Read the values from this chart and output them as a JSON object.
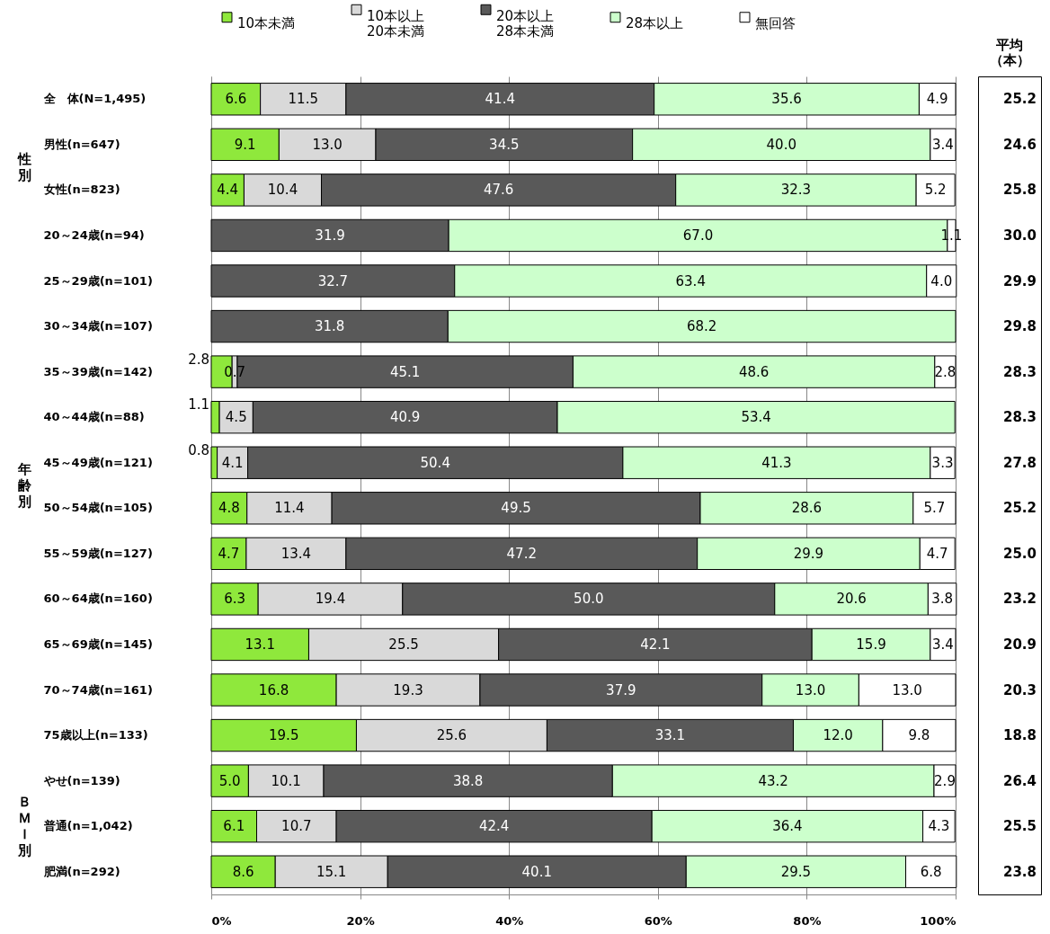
{
  "chart_data": [
    {
      "type": "bar",
      "orientation": "horizontal",
      "stacked": true,
      "legend": "top",
      "grid": "x",
      "categories": [
        "全　体(N=1,495)",
        "男性(n=647)",
        "女性(n=823)",
        "20～24歳(n=94)",
        "25～29歳(n=101)",
        "30～34歳(n=107)",
        "35～39歳(n=142)",
        "40～44歳(n=88)",
        "45～49歳(n=121)",
        "50～54歳(n=105)",
        "55～59歳(n=127)",
        "60～64歳(n=160)",
        "65～69歳(n=145)",
        "70～74歳(n=161)",
        "75歳以上(n=133)",
        "やせ(n=139)",
        "普通(n=1,042)",
        "肥満(n=292)"
      ],
      "series": [
        {
          "name": "10本未満",
          "color": "#8fe83c",
          "values": [
            6.6,
            9.1,
            4.4,
            null,
            null,
            null,
            2.8,
            1.1,
            0.8,
            4.8,
            4.7,
            6.3,
            13.1,
            16.8,
            19.5,
            5.0,
            6.1,
            8.6
          ],
          "value_labels": [
            "6.6",
            "9.1",
            "4.4",
            null,
            null,
            null,
            "2.8",
            "1.1",
            "0.8",
            "4.8",
            "4.7",
            "6.3",
            "13.1",
            "16.8",
            "19.5",
            "5.0",
            "6.1",
            "8.6"
          ]
        },
        {
          "name": "10本以上\n20本未満",
          "color": "#d9d9d9",
          "values": [
            11.5,
            13.0,
            10.4,
            null,
            null,
            null,
            0.7,
            4.5,
            4.1,
            11.4,
            13.4,
            19.4,
            25.5,
            19.3,
            25.6,
            10.1,
            10.7,
            15.1
          ],
          "value_labels": [
            "11.5",
            "13.0",
            "10.4",
            null,
            null,
            null,
            "0.7",
            "4.5",
            "4.1",
            "11.4",
            "13.4",
            "19.4",
            "25.5",
            "19.3",
            "25.6",
            "10.1",
            "10.7",
            "15.1"
          ]
        },
        {
          "name": "20本以上\n28本未満",
          "color": "#595959",
          "values": [
            41.4,
            34.5,
            47.6,
            31.9,
            32.7,
            31.8,
            45.1,
            40.9,
            50.4,
            49.5,
            47.2,
            50.0,
            42.1,
            37.9,
            33.1,
            38.8,
            42.4,
            40.1
          ],
          "value_labels": [
            "41.4",
            "34.5",
            "47.6",
            "31.9",
            "32.7",
            "31.8",
            "45.1",
            "40.9",
            "50.4",
            "49.5",
            "47.2",
            "50.0",
            "42.1",
            "37.9",
            "33.1",
            "38.8",
            "42.4",
            "40.1"
          ]
        },
        {
          "name": "28本以上",
          "color": "#ccffcc",
          "values": [
            35.6,
            40.0,
            32.3,
            67.0,
            63.4,
            68.2,
            48.6,
            53.4,
            41.3,
            28.6,
            29.9,
            20.6,
            15.9,
            13.0,
            12.0,
            43.2,
            36.4,
            29.5
          ],
          "value_labels": [
            "35.6",
            "40.0",
            "32.3",
            "67.0",
            "63.4",
            "68.2",
            "48.6",
            "53.4",
            "41.3",
            "28.6",
            "29.9",
            "20.6",
            "15.9",
            "13.0",
            "12.0",
            "43.2",
            "36.4",
            "29.5"
          ]
        },
        {
          "name": "無回答",
          "color": "#ffffff",
          "values": [
            4.9,
            3.4,
            5.2,
            1.1,
            4.0,
            null,
            2.8,
            null,
            3.3,
            5.7,
            4.7,
            3.8,
            3.4,
            13.0,
            9.8,
            2.9,
            4.3,
            6.8
          ],
          "value_labels": [
            "4.9",
            "3.4",
            "5.2",
            "1.1",
            "4.0",
            null,
            "2.8",
            null,
            "3.3",
            "5.7",
            "4.7",
            "3.8",
            "3.4",
            "13.0",
            "9.8",
            "2.9",
            "4.3",
            "6.8"
          ]
        }
      ],
      "xlim": [
        0,
        100
      ],
      "xticks": [
        {
          "value": 0,
          "label": "0%"
        },
        {
          "value": 20,
          "label": "20%"
        },
        {
          "value": 40,
          "label": "40%"
        },
        {
          "value": 60,
          "label": "60%"
        },
        {
          "value": 80,
          "label": "80%"
        },
        {
          "value": 100,
          "label": "100%"
        }
      ],
      "annotations": [
        "性別",
        "年齢別",
        "ＢＭＩ別"
      ]
    },
    {
      "type": "other",
      "title": "平均（本）",
      "value_labels": [
        "25.2",
        "24.6",
        "25.8",
        "30.0",
        "29.9",
        "29.8",
        "28.3",
        "28.3",
        "27.8",
        "25.2",
        "25.0",
        "23.2",
        "20.9",
        "20.3",
        "18.8",
        "26.4",
        "25.5",
        "23.8"
      ]
    }
  ]
}
